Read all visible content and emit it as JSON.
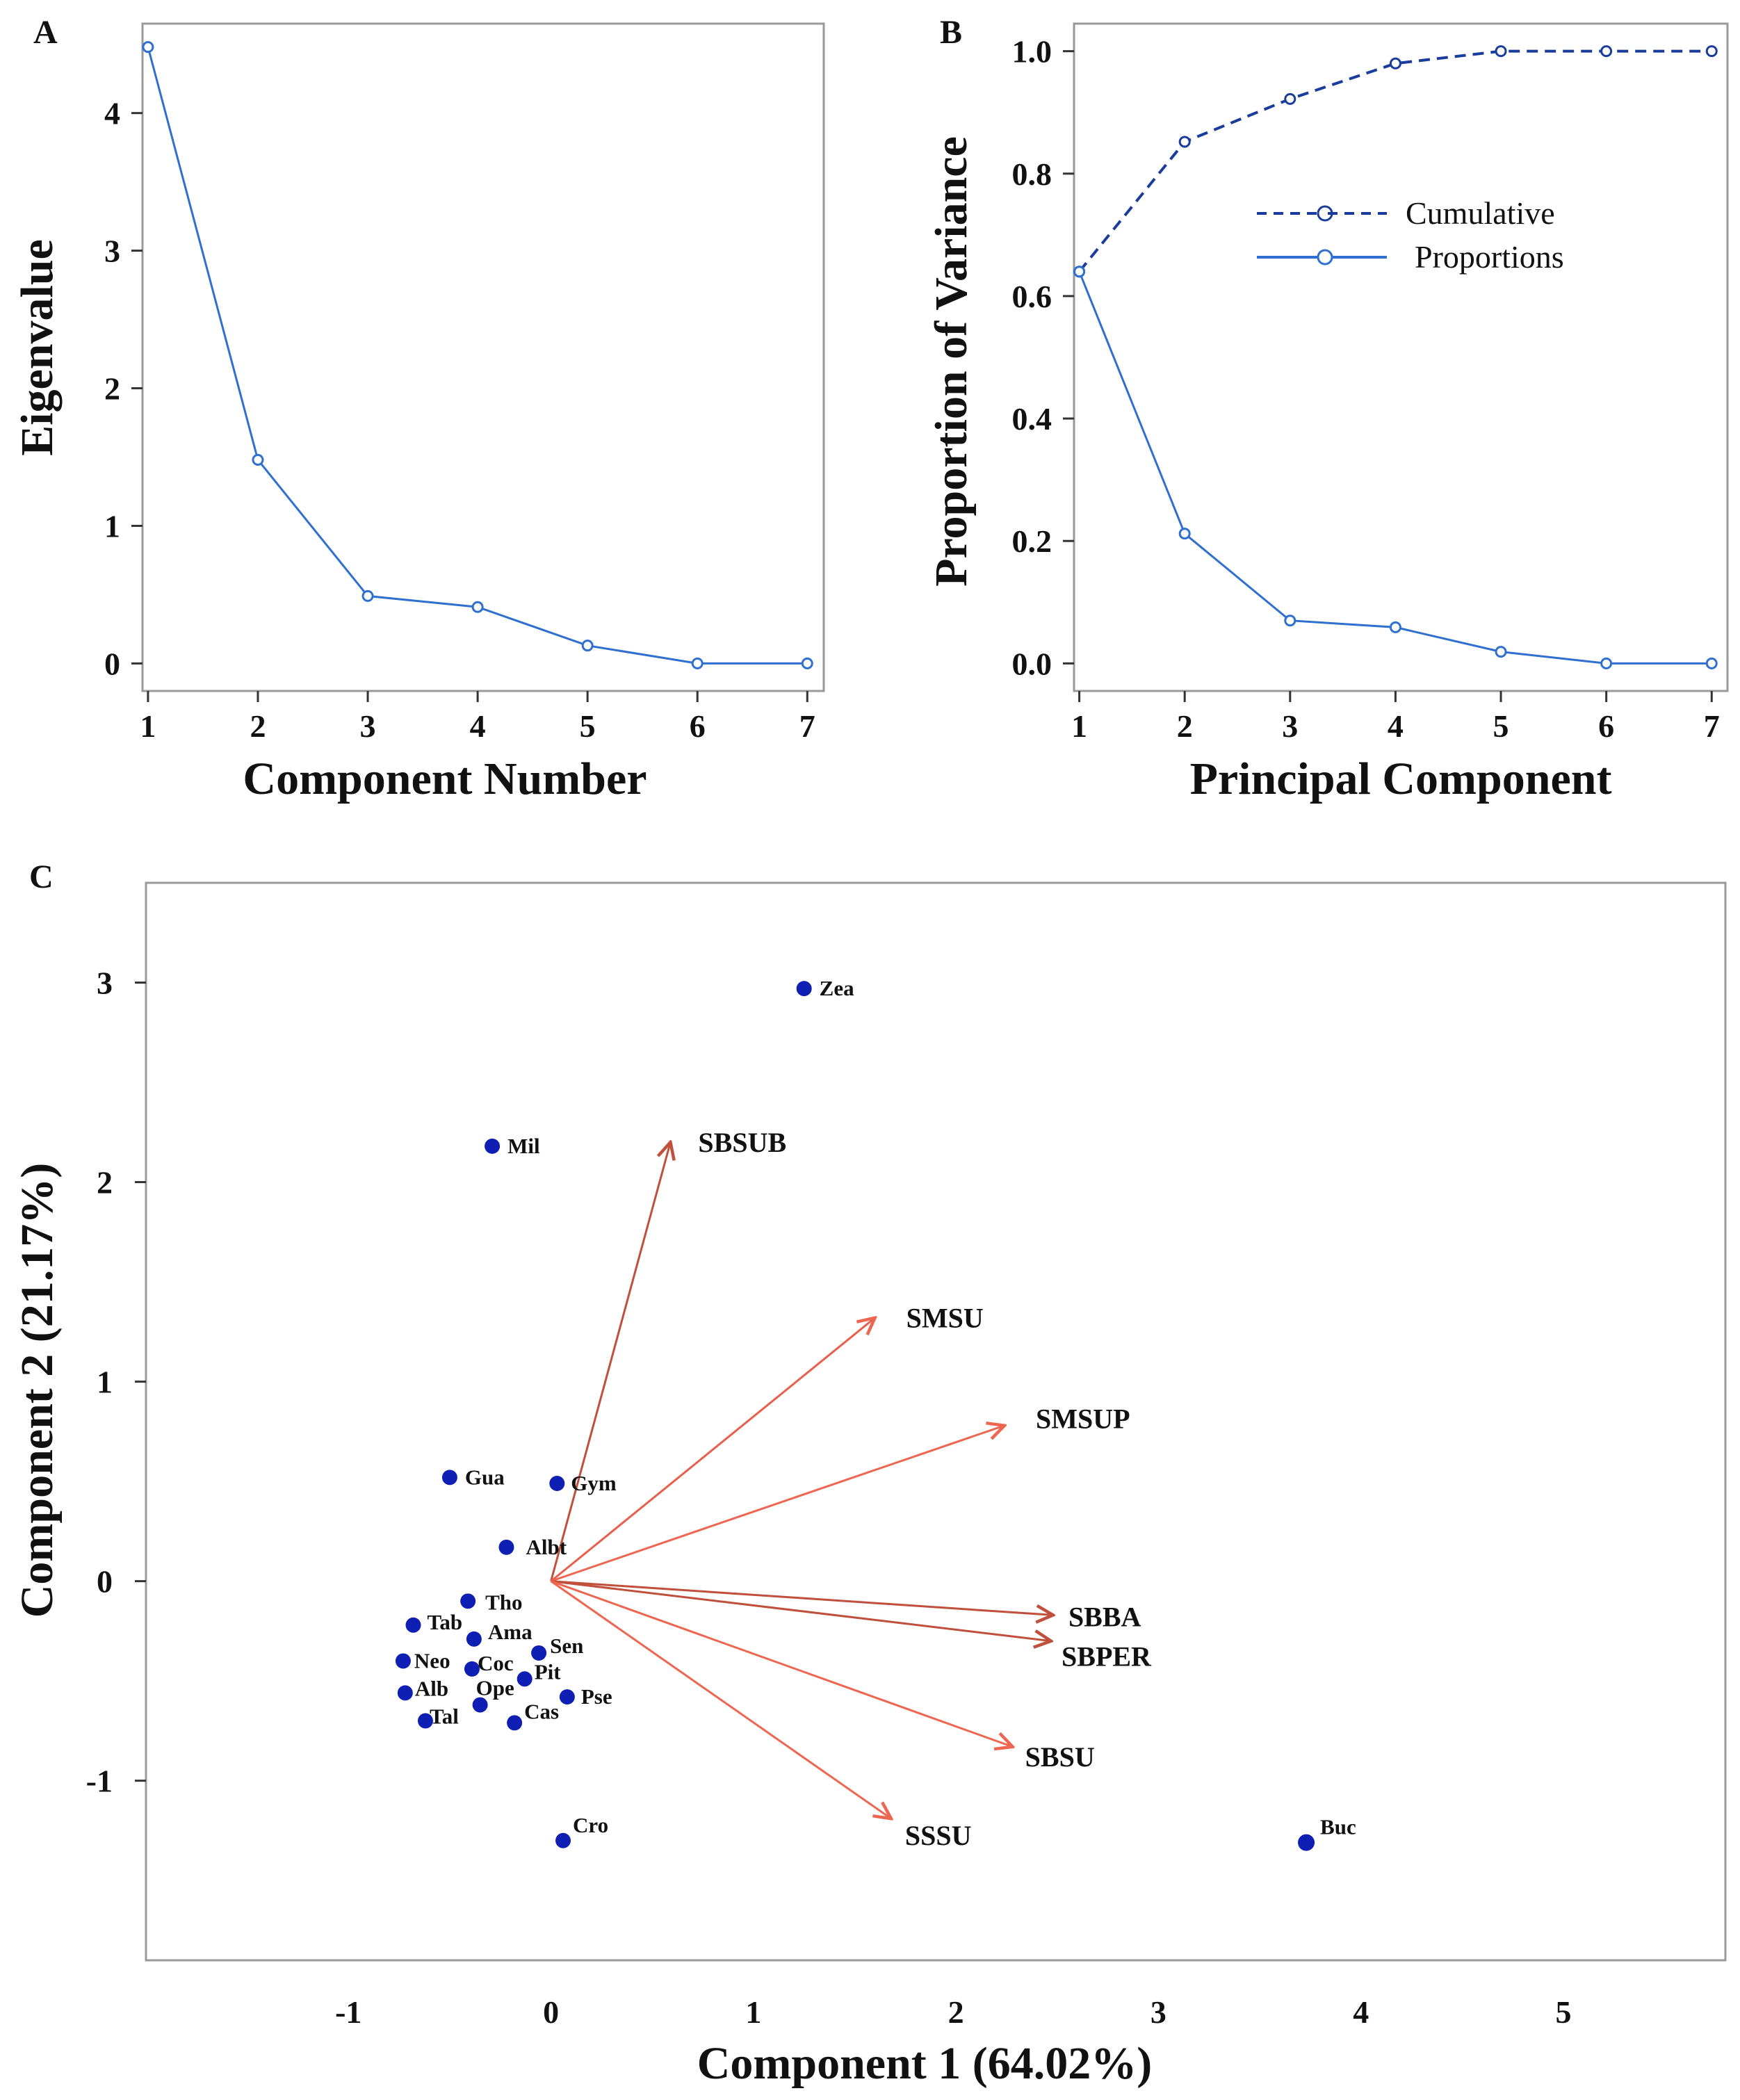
{
  "chart_data": [
    {
      "id": "A",
      "type": "line",
      "panel_letter": "A",
      "xlabel": "Component Number",
      "ylabel": "Eigenvalue",
      "x": [
        1,
        2,
        3,
        4,
        5,
        6,
        7
      ],
      "series": [
        {
          "name": "Eigenvalue",
          "values": [
            4.48,
            1.48,
            0.49,
            0.41,
            0.13,
            0.0,
            0.0
          ],
          "color": "#2e6fd0"
        }
      ],
      "xticks": [
        "1",
        "2",
        "3",
        "4",
        "5",
        "6",
        "7"
      ],
      "yticks": [
        "0",
        "1",
        "2",
        "3",
        "4"
      ],
      "xlim": [
        0.95,
        7.15
      ],
      "ylim": [
        -0.2,
        4.65
      ]
    },
    {
      "id": "B",
      "type": "line",
      "panel_letter": "B",
      "xlabel": "Principal Component",
      "ylabel": "Proportion of Variance",
      "x": [
        1,
        2,
        3,
        4,
        5,
        6,
        7
      ],
      "series": [
        {
          "name": "Cumulative",
          "style": "dashed",
          "values": [
            0.64,
            0.852,
            0.922,
            0.98,
            1.0,
            1.0,
            1.0
          ],
          "color": "#1a3c9c"
        },
        {
          "name": "Proportions",
          "style": "solid",
          "values": [
            0.64,
            0.212,
            0.07,
            0.059,
            0.019,
            0.0,
            0.0
          ],
          "color": "#2e6fd0"
        }
      ],
      "xticks": [
        "1",
        "2",
        "3",
        "4",
        "5",
        "6",
        "7"
      ],
      "yticks": [
        "0.0",
        "0.2",
        "0.4",
        "0.6",
        "0.8",
        "1.0"
      ],
      "xlim": [
        0.95,
        7.15
      ],
      "ylim": [
        -0.045,
        1.045
      ],
      "legend": "center-right"
    },
    {
      "id": "C",
      "type": "scatter",
      "panel_letter": "C",
      "xlabel": "Component 1 (64.02%)",
      "ylabel": "Component 2 (21.17%)",
      "xticks": [
        "-1",
        "0",
        "1",
        "2",
        "3",
        "4",
        "5"
      ],
      "yticks": [
        "-1",
        "0",
        "1",
        "2",
        "3"
      ],
      "xlim": [
        -2.0,
        5.8
      ],
      "ylim": [
        -1.9,
        3.5
      ],
      "points": [
        {
          "label": "Zea",
          "x": 1.25,
          "y": 2.97
        },
        {
          "label": "Mil",
          "x": -0.29,
          "y": 2.18
        },
        {
          "label": "Gua",
          "x": -0.5,
          "y": 0.52
        },
        {
          "label": "Gym",
          "x": 0.03,
          "y": 0.49
        },
        {
          "label": "Albt",
          "x": -0.22,
          "y": 0.17
        },
        {
          "label": "Tho",
          "x": -0.41,
          "y": -0.1
        },
        {
          "label": "Tab",
          "x": -0.68,
          "y": -0.22
        },
        {
          "label": "Ama",
          "x": -0.38,
          "y": -0.29
        },
        {
          "label": "Neo",
          "x": -0.73,
          "y": -0.4
        },
        {
          "label": "Coc",
          "x": -0.39,
          "y": -0.44
        },
        {
          "label": "Sen",
          "x": -0.06,
          "y": -0.36
        },
        {
          "label": "Alb",
          "x": -0.72,
          "y": -0.56
        },
        {
          "label": "Ope",
          "x": -0.35,
          "y": -0.62
        },
        {
          "label": "Pit",
          "x": -0.13,
          "y": -0.49
        },
        {
          "label": "Tal",
          "x": -0.62,
          "y": -0.7
        },
        {
          "label": "Cas",
          "x": -0.18,
          "y": -0.71
        },
        {
          "label": "Pse",
          "x": 0.08,
          "y": -0.58
        },
        {
          "label": "Cro",
          "x": 0.06,
          "y": -1.3
        },
        {
          "label": "Buc",
          "x": 3.73,
          "y": -1.31
        }
      ],
      "point_color": "#0f1fb4",
      "vectors": [
        {
          "label": "SBSUB",
          "x": 0.59,
          "y": 2.2,
          "color": "#c0503c"
        },
        {
          "label": "SMSU",
          "x": 1.6,
          "y": 1.32,
          "color": "#e8604c"
        },
        {
          "label": "SMSUP",
          "x": 2.24,
          "y": 0.78,
          "color": "#ee6650"
        },
        {
          "label": "SBBA",
          "x": 2.48,
          "y": -0.17,
          "color": "#c0503c"
        },
        {
          "label": "SBPER",
          "x": 2.47,
          "y": -0.3,
          "color": "#c0503c"
        },
        {
          "label": "SBSU",
          "x": 2.28,
          "y": -0.83,
          "color": "#ee6650"
        },
        {
          "label": "SSSU",
          "x": 1.68,
          "y": -1.19,
          "color": "#ee6650"
        }
      ]
    }
  ]
}
